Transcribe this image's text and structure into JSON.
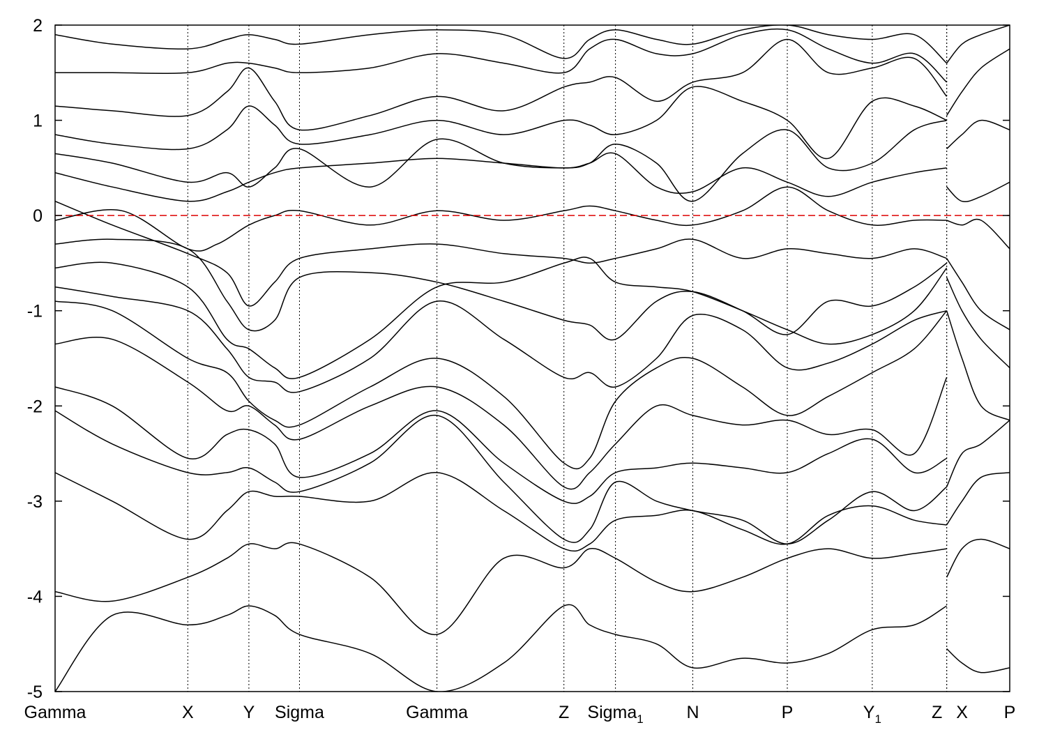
{
  "chart_data": {
    "type": "line",
    "title": "",
    "xlabel": "",
    "ylabel": "",
    "ylim": [
      -5,
      2
    ],
    "yticks": [
      "2",
      "1",
      "0",
      "-1",
      "-2",
      "-3",
      "-4",
      "-5"
    ],
    "ytick_values": [
      2,
      1,
      0,
      -1,
      -2,
      -3,
      -4,
      -5
    ],
    "xlim": [
      0,
      10
    ],
    "kpoints": [
      {
        "label": "Gamma",
        "sub": "",
        "x": 0
      },
      {
        "label": "X",
        "sub": "",
        "x": 1.39
      },
      {
        "label": "Y",
        "sub": "",
        "x": 2.03
      },
      {
        "label": "Sigma",
        "sub": "",
        "x": 2.56
      },
      {
        "label": "Gamma",
        "sub": "",
        "x": 4.0
      },
      {
        "label": "Z",
        "sub": "",
        "x": 5.33
      },
      {
        "label": "Sigma",
        "sub": "1",
        "x": 5.87
      },
      {
        "label": "N",
        "sub": "",
        "x": 6.68
      },
      {
        "label": "P",
        "sub": "",
        "x": 7.67
      },
      {
        "label": "Y",
        "sub": "1",
        "x": 8.56
      },
      {
        "label": "Z",
        "sub": "",
        "x": 9.34
      },
      {
        "label": "X",
        "sub": "",
        "x": 9.34
      },
      {
        "label": "P",
        "sub": "",
        "x": 10.0
      }
    ],
    "fermi_level": 0,
    "colors": {
      "bands": "#000000",
      "fermi": "#dd0000",
      "grid": "#000000"
    },
    "series": [
      {
        "x": [
          0,
          0.7,
          1.39,
          1.7,
          2.03,
          2.3,
          2.56,
          3.3,
          4.0,
          4.7,
          5.33,
          5.6,
          5.87,
          6.3,
          6.68,
          7.2,
          7.67,
          8.1,
          8.56,
          9.0,
          9.34
        ],
        "values": [
          -0.05,
          0.05,
          -0.35,
          -0.3,
          -0.1,
          0.0,
          0.05,
          -0.1,
          0.05,
          -0.05,
          0.05,
          0.1,
          0.05,
          -0.05,
          -0.1,
          0.05,
          0.3,
          0.05,
          -0.1,
          -0.05,
          -0.05
        ]
      },
      {
        "x": [
          0,
          0.6,
          1.39,
          1.8,
          2.03,
          2.3,
          2.56,
          3.3,
          4.0,
          4.7,
          5.33,
          5.6,
          5.87,
          6.3,
          6.68,
          7.2,
          7.67,
          8.1,
          8.56,
          9.0,
          9.34
        ],
        "values": [
          0.15,
          -0.1,
          -0.4,
          -0.6,
          -0.95,
          -0.7,
          -0.45,
          -0.35,
          -0.3,
          -0.4,
          -0.45,
          -0.5,
          -0.45,
          -0.35,
          -0.25,
          -0.45,
          -0.35,
          -0.4,
          -0.45,
          -0.35,
          -0.45
        ]
      },
      {
        "x": [
          0,
          0.6,
          1.39,
          1.8,
          2.03,
          2.3,
          2.56,
          3.3,
          4.0,
          4.7,
          5.33,
          5.6,
          5.87,
          6.3,
          6.68,
          7.2,
          7.67,
          8.1,
          8.56,
          9.0,
          9.34
        ],
        "values": [
          -0.3,
          -0.25,
          -0.35,
          -0.9,
          -1.2,
          -1.1,
          -0.65,
          -0.6,
          -0.7,
          -0.9,
          -1.1,
          -1.15,
          -1.3,
          -0.9,
          -0.8,
          -1.0,
          -1.25,
          -0.9,
          -0.95,
          -0.75,
          -0.5
        ]
      },
      {
        "x": [
          0,
          0.6,
          1.39,
          1.8,
          2.03,
          2.3,
          2.56,
          3.3,
          4.0,
          4.7,
          5.33,
          5.6,
          5.87,
          6.3,
          6.68,
          7.2,
          7.67,
          8.1,
          8.56,
          9.0,
          9.34
        ],
        "values": [
          -0.55,
          -0.5,
          -0.75,
          -1.3,
          -1.4,
          -1.6,
          -1.7,
          -1.3,
          -0.75,
          -0.7,
          -0.5,
          -0.45,
          -0.7,
          -0.75,
          -0.8,
          -1.0,
          -1.2,
          -1.35,
          -1.25,
          -1.0,
          -0.55
        ]
      },
      {
        "x": [
          0,
          0.6,
          1.39,
          1.8,
          2.03,
          2.3,
          2.56,
          3.3,
          4.0,
          4.7,
          5.33,
          5.6,
          5.87,
          6.3,
          6.68,
          7.2,
          7.67,
          8.1,
          8.56,
          9.0,
          9.34
        ],
        "values": [
          -0.75,
          -0.85,
          -1.0,
          -1.4,
          -1.7,
          -1.75,
          -1.85,
          -1.5,
          -0.9,
          -1.3,
          -1.7,
          -1.65,
          -1.8,
          -1.5,
          -1.05,
          -1.2,
          -1.6,
          -1.55,
          -1.35,
          -1.1,
          -1.0
        ]
      },
      {
        "x": [
          0,
          0.6,
          1.39,
          1.8,
          2.03,
          2.3,
          2.56,
          3.3,
          4.0,
          4.7,
          5.33,
          5.6,
          5.87,
          6.3,
          6.68,
          7.2,
          7.67,
          8.1,
          8.56,
          9.0,
          9.34
        ],
        "values": [
          -0.9,
          -1.0,
          -1.5,
          -1.65,
          -1.95,
          -2.15,
          -2.2,
          -1.8,
          -1.5,
          -1.9,
          -2.6,
          -2.55,
          -1.95,
          -1.6,
          -1.5,
          -1.8,
          -2.1,
          -1.9,
          -1.65,
          -1.4,
          -1.0
        ]
      },
      {
        "x": [
          0,
          0.6,
          1.39,
          1.8,
          2.03,
          2.3,
          2.56,
          3.3,
          4.0,
          4.7,
          5.33,
          5.6,
          5.87,
          6.3,
          6.68,
          7.2,
          7.67,
          8.1,
          8.56,
          9.0,
          9.34
        ],
        "values": [
          -1.35,
          -1.3,
          -1.75,
          -2.05,
          -2.0,
          -2.2,
          -2.35,
          -2.0,
          -1.8,
          -2.2,
          -2.85,
          -2.7,
          -2.4,
          -2.0,
          -2.1,
          -2.2,
          -2.15,
          -2.3,
          -2.25,
          -2.5,
          -1.7
        ]
      },
      {
        "x": [
          0,
          0.6,
          1.39,
          1.8,
          2.03,
          2.3,
          2.56,
          3.3,
          4.0,
          4.7,
          5.33,
          5.6,
          5.87,
          6.3,
          6.68,
          7.2,
          7.67,
          8.1,
          8.56,
          9.0,
          9.34
        ],
        "values": [
          -1.8,
          -2.0,
          -2.55,
          -2.3,
          -2.25,
          -2.4,
          -2.75,
          -2.5,
          -2.05,
          -2.6,
          -3.0,
          -2.95,
          -2.7,
          -2.65,
          -2.6,
          -2.65,
          -2.7,
          -2.5,
          -2.35,
          -2.7,
          -2.55
        ]
      },
      {
        "x": [
          0,
          0.6,
          1.39,
          1.8,
          2.03,
          2.3,
          2.56,
          3.3,
          4.0,
          4.7,
          5.33,
          5.6,
          5.87,
          6.3,
          6.68,
          7.2,
          7.67,
          8.1,
          8.56,
          9.0,
          9.34
        ],
        "values": [
          -2.05,
          -2.4,
          -2.7,
          -2.7,
          -2.65,
          -2.8,
          -2.9,
          -2.6,
          -2.1,
          -2.8,
          -3.4,
          -3.3,
          -2.8,
          -3.0,
          -3.1,
          -3.2,
          -3.45,
          -3.2,
          -2.9,
          -3.1,
          -2.85
        ]
      },
      {
        "x": [
          0,
          0.6,
          1.39,
          1.8,
          2.03,
          2.3,
          2.56,
          3.3,
          4.0,
          4.7,
          5.33,
          5.6,
          5.87,
          6.3,
          6.68,
          7.2,
          7.67,
          8.1,
          8.56,
          9.0,
          9.34
        ],
        "values": [
          -2.7,
          -3.0,
          -3.4,
          -3.1,
          -2.9,
          -2.95,
          -2.95,
          -3.0,
          -2.7,
          -3.1,
          -3.5,
          -3.45,
          -3.2,
          -3.15,
          -3.1,
          -3.3,
          -3.45,
          -3.15,
          -3.05,
          -3.2,
          -3.25
        ]
      },
      {
        "x": [
          0,
          0.6,
          1.39,
          1.8,
          2.03,
          2.3,
          2.56,
          3.3,
          4.0,
          4.7,
          5.33,
          5.6,
          5.87,
          6.3,
          6.68,
          7.2,
          7.67,
          8.1,
          8.56,
          9.0,
          9.34
        ],
        "values": [
          -3.95,
          -4.05,
          -3.8,
          -3.6,
          -3.45,
          -3.5,
          -3.45,
          -3.8,
          -4.4,
          -3.6,
          -3.7,
          -3.5,
          -3.6,
          -3.85,
          -3.95,
          -3.8,
          -3.6,
          -3.5,
          -3.6,
          -3.55,
          -3.5
        ]
      },
      {
        "x": [
          0,
          0.6,
          1.39,
          1.8,
          2.03,
          2.3,
          2.56,
          3.3,
          4.0,
          4.7,
          5.33,
          5.6,
          5.87,
          6.3,
          6.68,
          7.2,
          7.67,
          8.1,
          8.56,
          9.0,
          9.34
        ],
        "values": [
          -5.0,
          -4.2,
          -4.3,
          -4.2,
          -4.1,
          -4.2,
          -4.4,
          -4.6,
          -5.0,
          -4.7,
          -4.1,
          -4.3,
          -4.4,
          -4.5,
          -4.75,
          -4.65,
          -4.7,
          -4.6,
          -4.35,
          -4.3,
          -4.1
        ]
      },
      {
        "x": [
          0,
          0.6,
          1.39,
          1.8,
          2.03,
          2.3,
          2.56,
          3.3,
          4.0,
          4.7,
          5.33,
          5.6,
          5.87,
          6.3,
          6.68,
          7.2,
          7.67,
          8.1,
          8.56,
          9.0,
          9.34
        ],
        "values": [
          0.45,
          0.3,
          0.15,
          0.25,
          0.35,
          0.45,
          0.5,
          0.55,
          0.6,
          0.55,
          0.5,
          0.55,
          0.65,
          0.3,
          0.25,
          0.5,
          0.35,
          0.2,
          0.35,
          0.45,
          0.5
        ]
      },
      {
        "x": [
          0,
          0.6,
          1.39,
          1.8,
          2.03,
          2.3,
          2.56,
          3.3,
          4.0,
          4.7,
          5.33,
          5.6,
          5.87,
          6.3,
          6.68,
          7.2,
          7.67,
          8.1,
          8.56,
          9.0,
          9.34
        ],
        "values": [
          0.65,
          0.55,
          0.35,
          0.45,
          0.3,
          0.5,
          0.7,
          0.3,
          0.8,
          0.55,
          0.5,
          0.55,
          0.75,
          0.55,
          0.15,
          0.65,
          0.9,
          0.5,
          0.55,
          0.9,
          1.0
        ]
      },
      {
        "x": [
          0,
          0.6,
          1.39,
          1.8,
          2.03,
          2.3,
          2.56,
          3.3,
          4.0,
          4.7,
          5.33,
          5.6,
          5.87,
          6.3,
          6.68,
          7.2,
          7.67,
          8.1,
          8.56,
          9.0,
          9.34
        ],
        "values": [
          0.85,
          0.75,
          0.7,
          0.9,
          1.15,
          0.95,
          0.75,
          0.85,
          1.0,
          0.85,
          1.0,
          0.95,
          0.85,
          1.0,
          1.35,
          1.2,
          1.0,
          0.6,
          1.2,
          1.15,
          1.0
        ]
      },
      {
        "x": [
          0,
          0.6,
          1.39,
          1.8,
          2.03,
          2.3,
          2.56,
          3.3,
          4.0,
          4.7,
          5.33,
          5.6,
          5.87,
          6.3,
          6.68,
          7.2,
          7.67,
          8.1,
          8.56,
          9.0,
          9.34
        ],
        "values": [
          1.15,
          1.1,
          1.05,
          1.3,
          1.55,
          1.2,
          0.9,
          1.05,
          1.25,
          1.1,
          1.35,
          1.4,
          1.45,
          1.2,
          1.4,
          1.5,
          1.85,
          1.5,
          1.55,
          1.65,
          1.25
        ]
      },
      {
        "x": [
          0,
          0.6,
          1.39,
          1.8,
          2.03,
          2.3,
          2.56,
          3.3,
          4.0,
          4.7,
          5.33,
          5.6,
          5.87,
          6.3,
          6.68,
          7.2,
          7.67,
          8.1,
          8.56,
          9.0,
          9.34
        ],
        "values": [
          1.5,
          1.5,
          1.5,
          1.6,
          1.6,
          1.55,
          1.5,
          1.55,
          1.7,
          1.6,
          1.5,
          1.75,
          1.85,
          1.7,
          1.7,
          1.9,
          1.95,
          1.75,
          1.6,
          1.7,
          1.4
        ]
      },
      {
        "x": [
          0,
          0.6,
          1.39,
          1.8,
          2.03,
          2.3,
          2.56,
          3.3,
          4.0,
          4.7,
          5.33,
          5.6,
          5.87,
          6.3,
          6.68,
          7.2,
          7.67,
          8.1,
          8.56,
          9.0,
          9.34
        ],
        "values": [
          1.9,
          1.8,
          1.75,
          1.85,
          1.9,
          1.85,
          1.8,
          1.9,
          1.95,
          1.9,
          1.65,
          1.85,
          1.95,
          1.85,
          1.8,
          1.95,
          2.0,
          1.9,
          1.85,
          1.9,
          1.6
        ]
      },
      {
        "x": [
          9.34,
          9.5,
          9.7,
          10.0
        ],
        "values": [
          -0.05,
          -0.1,
          -0.05,
          -0.35
        ]
      },
      {
        "x": [
          9.34,
          9.5,
          9.7,
          10.0
        ],
        "values": [
          -0.45,
          -0.7,
          -1.0,
          -1.2
        ]
      },
      {
        "x": [
          9.34,
          9.5,
          9.7,
          10.0
        ],
        "values": [
          -0.65,
          -1.0,
          -1.3,
          -1.6
        ]
      },
      {
        "x": [
          9.34,
          9.5,
          9.7,
          10.0
        ],
        "values": [
          -1.0,
          -1.5,
          -2.0,
          -2.15
        ]
      },
      {
        "x": [
          9.34,
          9.5,
          9.7,
          10.0
        ],
        "values": [
          -2.85,
          -2.5,
          -2.4,
          -2.15
        ]
      },
      {
        "x": [
          9.34,
          9.5,
          9.7,
          10.0
        ],
        "values": [
          -3.25,
          -3.0,
          -2.75,
          -2.7
        ]
      },
      {
        "x": [
          9.34,
          9.5,
          9.7,
          10.0
        ],
        "values": [
          -3.8,
          -3.5,
          -3.4,
          -3.5
        ]
      },
      {
        "x": [
          9.34,
          9.5,
          9.7,
          10.0
        ],
        "values": [
          -4.55,
          -4.7,
          -4.8,
          -4.75
        ]
      },
      {
        "x": [
          9.34,
          9.5,
          9.7,
          10.0
        ],
        "values": [
          0.3,
          0.15,
          0.2,
          0.35
        ]
      },
      {
        "x": [
          9.34,
          9.5,
          9.7,
          10.0
        ],
        "values": [
          0.7,
          0.85,
          1.0,
          0.9
        ]
      },
      {
        "x": [
          9.34,
          9.5,
          9.7,
          10.0
        ],
        "values": [
          1.05,
          1.3,
          1.55,
          1.75
        ]
      },
      {
        "x": [
          9.34,
          9.5,
          9.7,
          10.0
        ],
        "values": [
          1.6,
          1.8,
          1.9,
          2.0
        ]
      }
    ]
  }
}
